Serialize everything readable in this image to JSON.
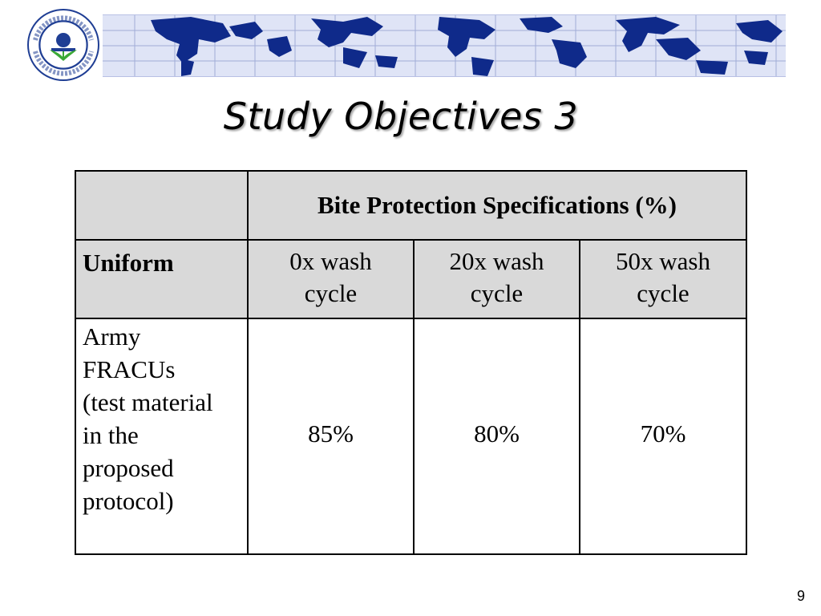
{
  "header": {
    "seal_text": "UNITED STATES ENVIRONMENTAL PROTECTION AGENCY",
    "colors": {
      "seal_blue": "#1f3e94",
      "map_land": "#0f2a8a",
      "map_sea": "#dfe4f6",
      "leaf_green": "#3aa935"
    }
  },
  "slide": {
    "title": "Study Objectives 3",
    "page_number": "9"
  },
  "table": {
    "group_header": "Bite Protection Specifications (%)",
    "row_header": "Uniform",
    "columns": [
      {
        "line1": "0x wash",
        "line2": "cycle"
      },
      {
        "line1": "20x wash",
        "line2": "cycle"
      },
      {
        "line1": "50x wash",
        "line2": "cycle"
      }
    ],
    "row": {
      "material_lines": [
        "Army",
        "FRACUs",
        "(test material",
        "in the",
        "proposed",
        "protocol)"
      ],
      "values": [
        "85%",
        "80%",
        "70%"
      ]
    }
  }
}
